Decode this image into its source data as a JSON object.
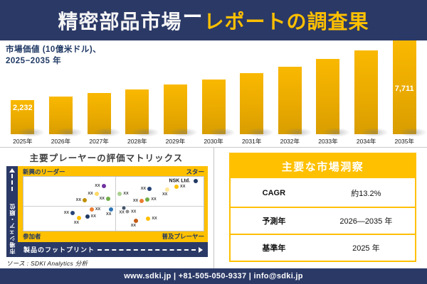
{
  "header": {
    "title_white": "精密部品市場",
    "title_dash": "ー",
    "title_gold": "レポートの調査果"
  },
  "chart_data": [
    {
      "type": "bar",
      "title": "市場価値 (10億米ドル)、\n2025−2035 年",
      "categories": [
        "2025年",
        "2026年",
        "2027年",
        "2028年",
        "2029年",
        "2030年",
        "2031年",
        "2032年",
        "2033年",
        "2034年",
        "2035年"
      ],
      "values": [
        2232,
        2527,
        2861,
        3239,
        3666,
        4150,
        4698,
        5318,
        6020,
        6814,
        7711
      ],
      "bar_labels": [
        "2,232",
        "",
        "",
        "",
        "",
        "",
        "",
        "",
        "",
        "",
        "7,711"
      ],
      "ylabel": "10億米ドル",
      "ylim": [
        0,
        8000
      ],
      "grid": false,
      "bar_color": "#EFAB00"
    },
    {
      "type": "scatter",
      "title": "主要プレーヤーの評価マトリックス",
      "x_axis": "製品のフットプリント",
      "y_axis": "市場シェア・順位",
      "quadrants": {
        "top_left": "新興のリーダー",
        "top_right": "スター",
        "bottom_left": "参加者",
        "bottom_right": "普及プレーヤー"
      },
      "points": [
        {
          "x": 44.5,
          "y": 17,
          "color": "#7030A0",
          "label": "XX",
          "side": "left"
        },
        {
          "x": 40.6,
          "y": 31,
          "color": "#FFD966",
          "label": "XX",
          "side": "left"
        },
        {
          "x": 34,
          "y": 43,
          "color": "#BF8F00",
          "label": "XX",
          "side": "left"
        },
        {
          "x": 47,
          "y": 41,
          "color": "#70AD47",
          "label": "XX",
          "side": "left"
        },
        {
          "x": 53.5,
          "y": 31.5,
          "color": "#A9D18E",
          "label": "XX",
          "side": "right"
        },
        {
          "x": 70,
          "y": 23,
          "color": "#264478",
          "label": "XX",
          "side": "left"
        },
        {
          "x": 80,
          "y": 24,
          "color": "#FFE699",
          "label": "XX",
          "side": "below"
        },
        {
          "x": 85,
          "y": 18.5,
          "color": "#FFC000",
          "label": "XX",
          "side": "right"
        },
        {
          "x": 95.7,
          "y": 8,
          "color": "#203864",
          "label": "NSK Ltd.",
          "side": "left",
          "major": true,
          "name": "nsk-ltd-point"
        },
        {
          "x": 65.7,
          "y": 45,
          "color": "#ED7D31",
          "label": "XX",
          "side": "left"
        },
        {
          "x": 68.9,
          "y": 42.7,
          "color": "#70AD47",
          "label": "XX",
          "side": "right"
        },
        {
          "x": 37.9,
          "y": 60.5,
          "color": "#ED7D31",
          "label": "XX",
          "side": "right"
        },
        {
          "x": 48.8,
          "y": 60,
          "color": "#2E75B6",
          "label": "XX",
          "side": "below"
        },
        {
          "x": 27.3,
          "y": 67,
          "color": "#264478",
          "label": "XX",
          "side": "left"
        },
        {
          "x": 35.4,
          "y": 73.2,
          "color": "#203864",
          "label": "XX",
          "side": "right"
        },
        {
          "x": 30.9,
          "y": 76.5,
          "color": "#FFC000",
          "label": "XX",
          "side": "below"
        },
        {
          "x": 55.9,
          "y": 57.5,
          "color": "#44546A",
          "label": "XX",
          "side": "below",
          "size": 5
        },
        {
          "x": 57.9,
          "y": 64.6,
          "color": "#909090",
          "label": "XX",
          "side": "right",
          "size": 5
        },
        {
          "x": 62.5,
          "y": 81.9,
          "color": "#C55A11",
          "label": "XX",
          "side": "below"
        },
        {
          "x": 69.3,
          "y": 77.8,
          "color": "#FFC000",
          "label": "XX",
          "side": "right"
        }
      ]
    }
  ],
  "insights": {
    "title": "主要な市場洞察",
    "rows": [
      {
        "label": "CAGR",
        "value": "約13.2%"
      },
      {
        "label": "予測年",
        "value": "2026—2035 年"
      },
      {
        "label": "基準年",
        "value": "2025 年"
      }
    ]
  },
  "source": "ソース : SDKI Analytics 分析",
  "footer": "www.sdki.jp | +81-505-050-9337 | info@sdki.jp",
  "colors": {
    "navy": "#2B3966",
    "gold": "#FFC000",
    "bar_gradient_top": "#F9B800",
    "bar_gradient_bottom": "#D89D00"
  }
}
